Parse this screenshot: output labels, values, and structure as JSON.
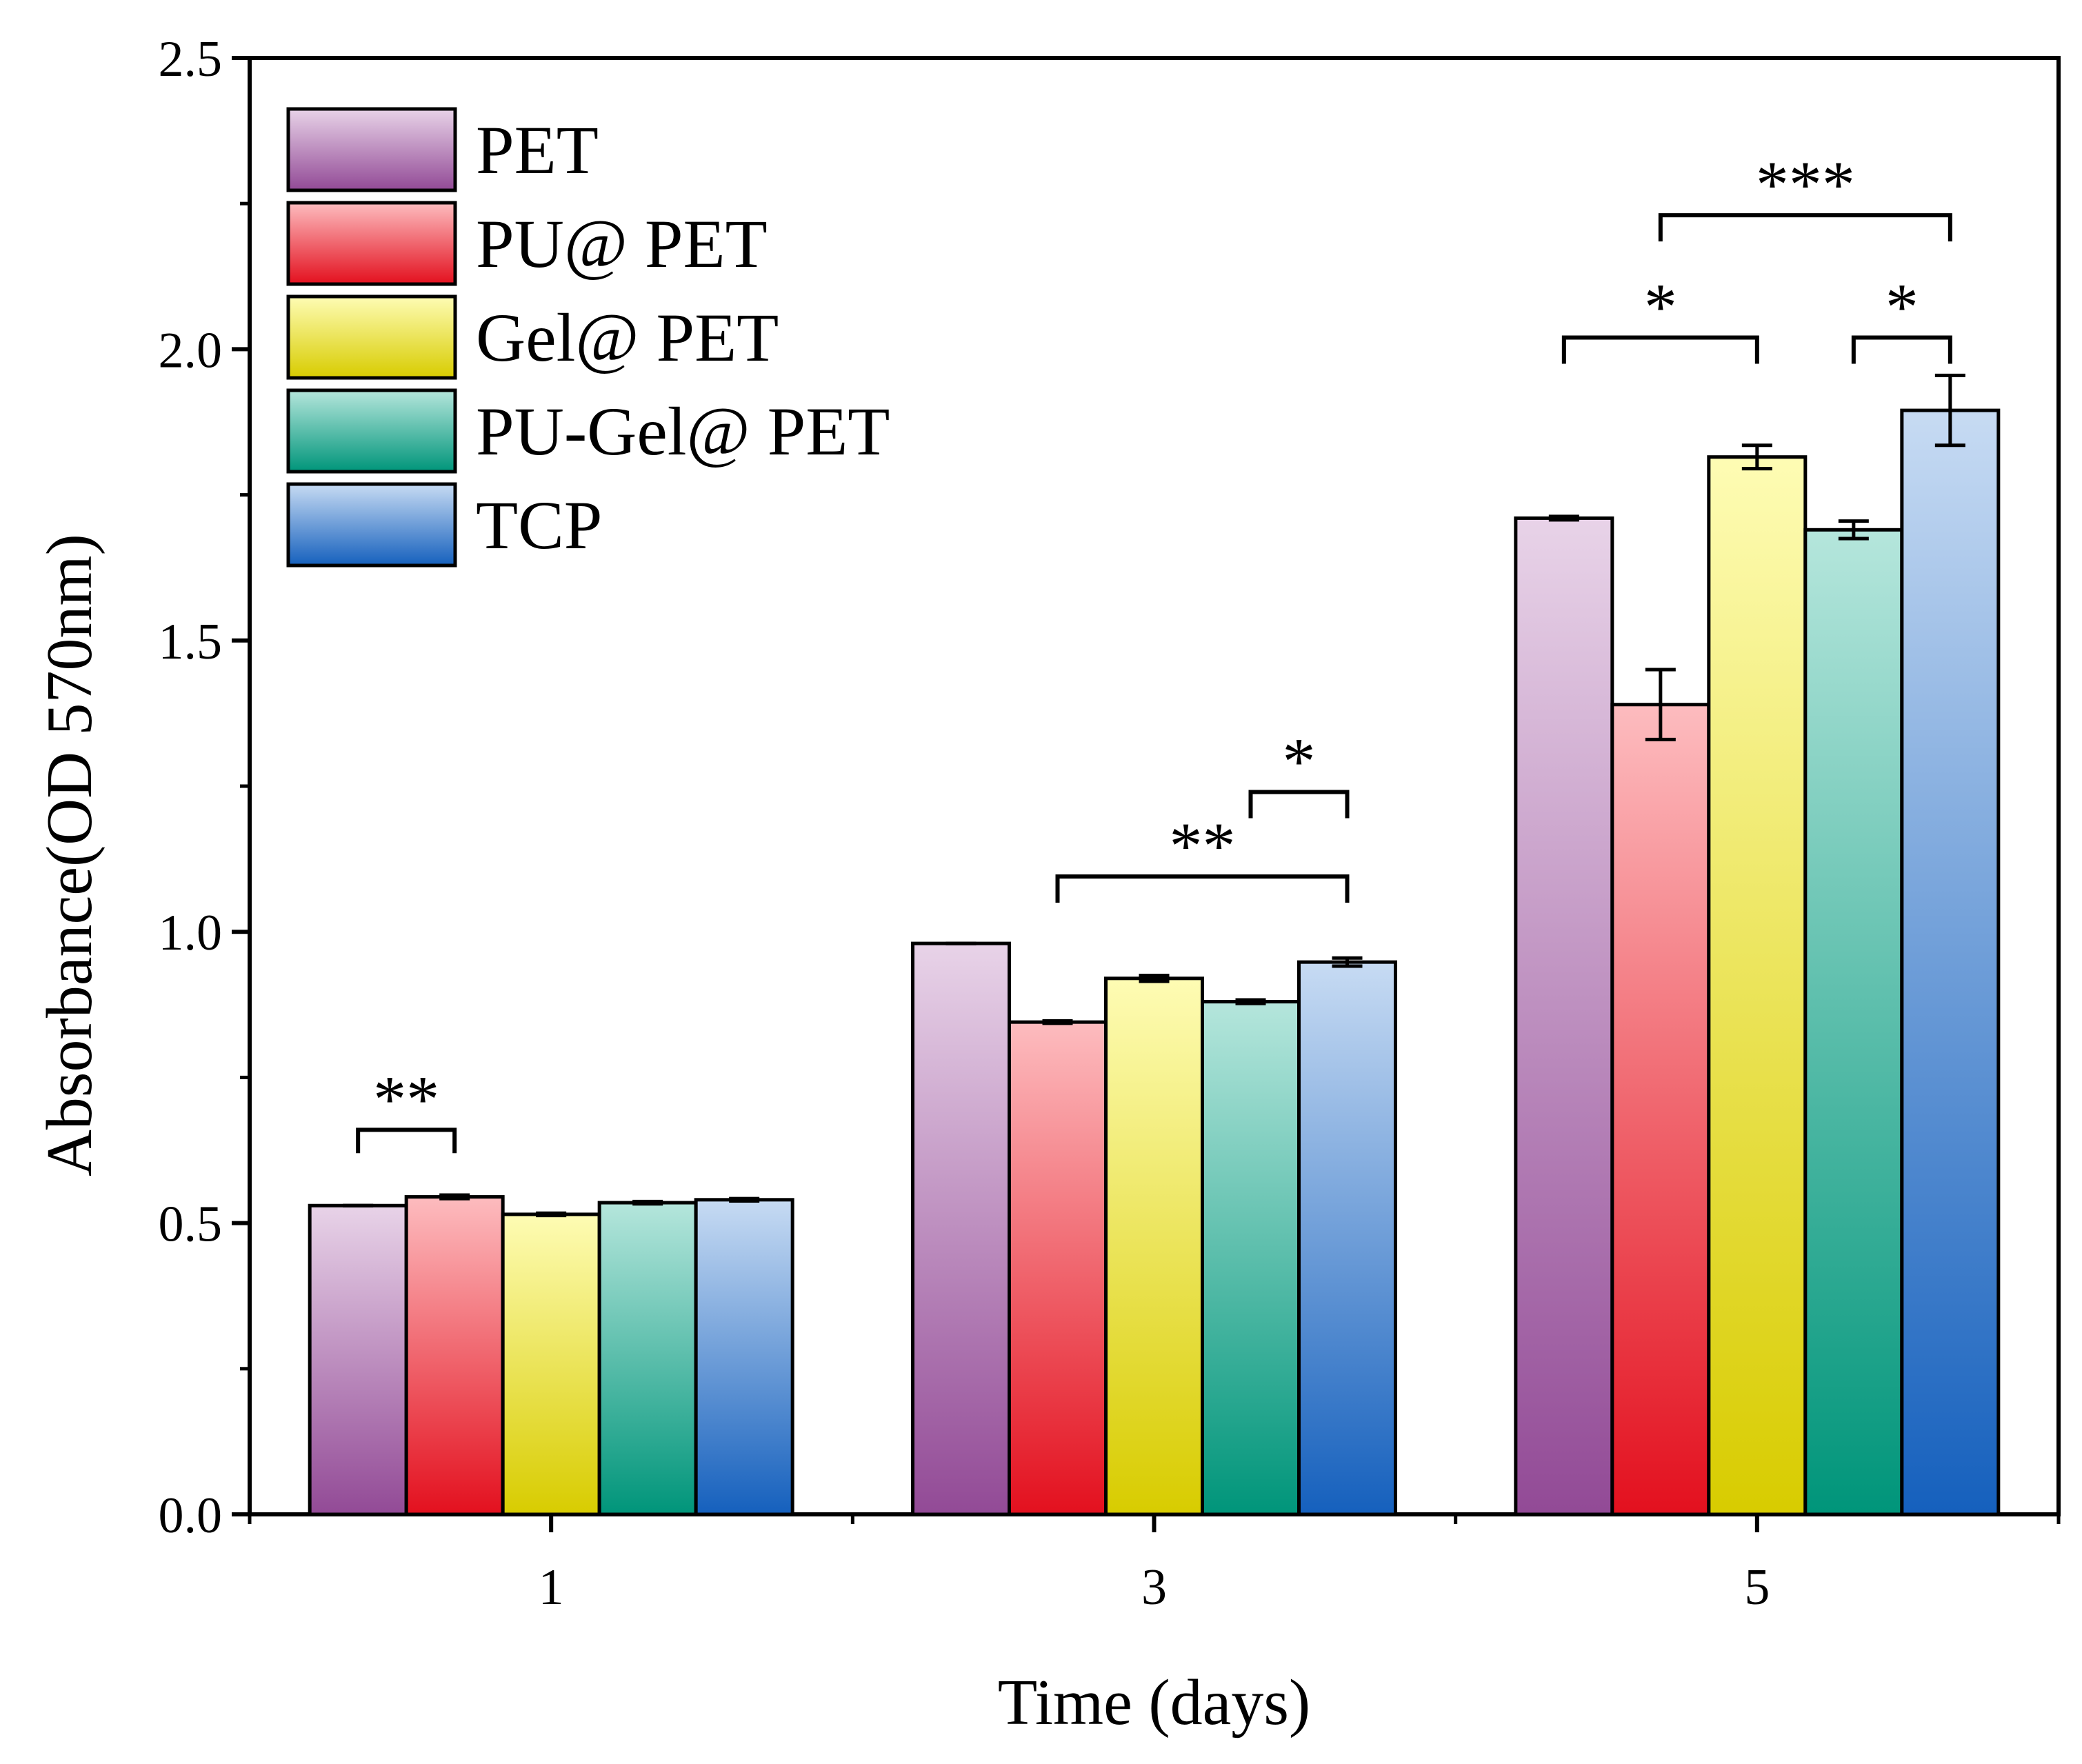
{
  "chart_data": {
    "type": "bar",
    "title": "",
    "xlabel": "Time (days)",
    "ylabel": "Absorbance(OD 570nm)",
    "categories": [
      "1",
      "3",
      "5"
    ],
    "ylim": [
      0,
      2.5
    ],
    "yticks": [
      "0.0",
      "0.5",
      "1.0",
      "1.5",
      "2.0",
      "2.5"
    ],
    "legend_position": "top-left",
    "series": [
      {
        "name": "PET",
        "values": [
          0.53,
          0.98,
          1.71
        ],
        "errors": [
          0.0,
          0.0,
          0.003
        ],
        "color_top": "#e8d3e8",
        "color_bottom": "#924a96"
      },
      {
        "name": "PU@ PET",
        "values": [
          0.545,
          0.845,
          1.39
        ],
        "errors": [
          0.003,
          0.002,
          0.06
        ],
        "color_top": "#fdbcbf",
        "color_bottom": "#e3101e"
      },
      {
        "name": "Gel@ PET",
        "values": [
          0.515,
          0.92,
          1.815
        ],
        "errors": [
          0.002,
          0.005,
          0.02
        ],
        "color_top": "#fefcb4",
        "color_bottom": "#d8cc00"
      },
      {
        "name": "PU-Gel@ PET",
        "values": [
          0.535,
          0.88,
          1.69
        ],
        "errors": [
          0.002,
          0.003,
          0.015
        ],
        "color_top": "#b5e6dc",
        "color_bottom": "#00957a"
      },
      {
        "name": "TCP",
        "values": [
          0.54,
          0.948,
          1.895
        ],
        "errors": [
          0.002,
          0.007,
          0.06
        ],
        "color_top": "#c7dbf3",
        "color_bottom": "#1560bd"
      }
    ],
    "significance": [
      {
        "category": "1",
        "from": "PET",
        "to": "PU@ PET",
        "label": "**"
      },
      {
        "category": "3",
        "from": "PU@ PET",
        "to": "TCP",
        "label": "**"
      },
      {
        "category": "3",
        "from": "PU-Gel@ PET",
        "to": "TCP",
        "label": "*"
      },
      {
        "category": "5",
        "from": "PU@ PET",
        "to": "TCP",
        "label": "***"
      },
      {
        "category": "5",
        "from": "PET",
        "to": "Gel@ PET",
        "label": "*"
      },
      {
        "category": "5",
        "from": "PU-Gel@ PET",
        "to": "TCP",
        "label": "*"
      }
    ]
  }
}
